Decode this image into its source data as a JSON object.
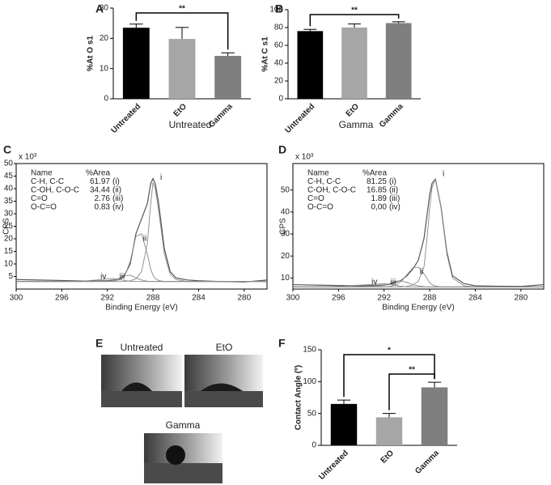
{
  "chart_data": [
    {
      "type": "bar",
      "panel_label": "A",
      "y_label": "%At O s1",
      "x_label": "Untreated",
      "categories": [
        "Untreated",
        "EtO",
        "Gamma"
      ],
      "values": [
        23.5,
        19.8,
        14.2
      ],
      "errors": [
        1.2,
        3.8,
        1.0
      ],
      "colors": [
        "#000000",
        "#a6a6a6",
        "#7f7f7f"
      ],
      "ylim": [
        0,
        30
      ],
      "yticks": [
        0,
        10,
        20,
        30
      ],
      "significance": [
        {
          "text": "**",
          "between": [
            "Untreated",
            "Gamma"
          ]
        }
      ]
    },
    {
      "type": "bar",
      "panel_label": "B",
      "y_label": "%At C s1",
      "x_label": "Gamma",
      "categories": [
        "Untreated",
        "EtO",
        "Gamma"
      ],
      "values": [
        76,
        80,
        85
      ],
      "errors": [
        2,
        4,
        1.5
      ],
      "colors": [
        "#000000",
        "#a6a6a6",
        "#7f7f7f"
      ],
      "ylim": [
        0,
        100
      ],
      "yticks": [
        0,
        20,
        40,
        60,
        80,
        100
      ],
      "significance": [
        {
          "text": "**",
          "between": [
            "Untreated",
            "Gamma"
          ]
        }
      ]
    },
    {
      "type": "line",
      "panel_label": "C",
      "y_label": "CPS",
      "x_label": "Binding Energy (eV)",
      "y_scale_label": "x 10³",
      "xlim": [
        300,
        278
      ],
      "xticks": [
        300,
        296,
        292,
        288,
        284,
        280
      ],
      "ylim": [
        0,
        50
      ],
      "yticks": [
        5,
        10,
        15,
        20,
        25,
        30,
        35,
        40,
        45,
        50
      ],
      "table": {
        "header": [
          "Name",
          "%Area"
        ],
        "rows": [
          [
            "C-H, C-C",
            "61.97",
            "(i)"
          ],
          [
            "C-OH, C-O-C",
            "34.44",
            "(ii)"
          ],
          [
            "C=O",
            "2.76",
            "(iii)"
          ],
          [
            "O-C=O",
            "0.83",
            "(iv)"
          ]
        ]
      },
      "x": [
        300,
        298,
        296,
        294,
        292,
        291.5,
        291,
        290.5,
        290,
        289.5,
        289,
        288.5,
        288.2,
        288,
        287.8,
        287.5,
        287,
        286.5,
        286,
        285,
        284,
        282,
        280,
        278
      ],
      "series": [
        {
          "color": "#555555",
          "values": [
            3.8,
            3.6,
            3.4,
            3.2,
            3.3,
            3.6,
            4.0,
            5.5,
            10,
            22,
            28,
            34,
            42,
            44,
            42,
            34,
            16,
            7,
            4.5,
            3.6,
            3.3,
            3.0,
            2.8,
            3.6
          ]
        },
        {
          "name": "i",
          "color": "#888888",
          "values": [
            3,
            3,
            3,
            3,
            3,
            3,
            3,
            3,
            3.3,
            4,
            7,
            18,
            34,
            42.5,
            40,
            31,
            14,
            6,
            3.8,
            3,
            3,
            3,
            3,
            3
          ]
        },
        {
          "name": "ii",
          "color": "#888888",
          "values": [
            3,
            3,
            3,
            3,
            3,
            3.2,
            3.6,
            5,
            11,
            21,
            22,
            14,
            8,
            5.5,
            4.2,
            3.4,
            3,
            3,
            3,
            3,
            3,
            3,
            3,
            3
          ]
        },
        {
          "name": "iii",
          "color": "#888888",
          "values": [
            3,
            3,
            3,
            3,
            3.1,
            3.4,
            4.2,
            5.3,
            5.5,
            4.5,
            3.6,
            3.1,
            3,
            3,
            3,
            3,
            3,
            3,
            3,
            3,
            3,
            3,
            3,
            3
          ]
        },
        {
          "name": "iv",
          "color": "#888888",
          "values": [
            3,
            3,
            3,
            3.2,
            4.0,
            4.2,
            3.9,
            3.4,
            3.1,
            3,
            3,
            3,
            3,
            3,
            3,
            3,
            3,
            3,
            3,
            3,
            3,
            3,
            3,
            3
          ]
        }
      ]
    },
    {
      "type": "line",
      "panel_label": "D",
      "y_label": "CPS",
      "x_label": "Binding Energy (eV)",
      "y_scale_label": "x 10³",
      "xlim": [
        300,
        278
      ],
      "xticks": [
        300,
        296,
        292,
        288,
        284,
        280
      ],
      "ylim": [
        5,
        62
      ],
      "yticks": [
        10,
        20,
        30,
        40,
        50
      ],
      "table": {
        "header": [
          "Name",
          "%Area"
        ],
        "rows": [
          [
            "C-H, C-C",
            "81.25",
            "(i)"
          ],
          [
            "C-OH, C-O-C",
            "16.85",
            "(ii)"
          ],
          [
            "C=O",
            "1.89",
            "(iii)"
          ],
          [
            "O-C=O",
            "0,00",
            "(iv)"
          ]
        ]
      },
      "x": [
        300,
        298,
        296,
        294,
        292,
        291.5,
        291,
        290.5,
        290,
        289.5,
        289,
        288.5,
        288.2,
        288,
        287.8,
        287.5,
        287,
        286.5,
        286,
        285,
        284,
        282,
        280,
        278
      ],
      "series": [
        {
          "color": "#555555",
          "values": [
            7,
            6.8,
            6.6,
            6.5,
            6.8,
            7.2,
            8,
            9,
            11,
            14,
            18,
            28,
            40,
            48,
            53,
            55,
            42,
            22,
            11,
            7.5,
            6.5,
            6.3,
            6.2,
            7
          ]
        },
        {
          "name": "i",
          "color": "#888888",
          "values": [
            6,
            6,
            6,
            6,
            6,
            6,
            6,
            6,
            6.2,
            6.8,
            8.5,
            15,
            30,
            42,
            51,
            55,
            42,
            21,
            10,
            6.5,
            6,
            6,
            6,
            6
          ]
        },
        {
          "name": "ii",
          "color": "#888888",
          "values": [
            6,
            6,
            6,
            6,
            6,
            6.2,
            6.8,
            8.5,
            11.5,
            14.5,
            15,
            12,
            9.5,
            8,
            7,
            6.4,
            6,
            6,
            6,
            6,
            6,
            6,
            6,
            6
          ]
        },
        {
          "name": "iii",
          "color": "#888888",
          "values": [
            6,
            6,
            6,
            6.1,
            6.6,
            7.5,
            8.5,
            8.8,
            8,
            7,
            6.4,
            6.1,
            6,
            6,
            6,
            6,
            6,
            6,
            6,
            6,
            6,
            6,
            6,
            6
          ]
        },
        {
          "name": "iv",
          "color": "#888888",
          "values": [
            6,
            6,
            6.2,
            6.8,
            7.4,
            7.2,
            6.7,
            6.3,
            6,
            6,
            6,
            6,
            6,
            6,
            6,
            6,
            6,
            6,
            6,
            6,
            6,
            6,
            6,
            6
          ]
        }
      ]
    },
    {
      "type": "bar",
      "panel_label": "F",
      "y_label": "Contact Angle (º)",
      "categories": [
        "Untreated",
        "EtO",
        "Gamma"
      ],
      "values": [
        65,
        44,
        91
      ],
      "errors": [
        6,
        6,
        8
      ],
      "colors": [
        "#000000",
        "#a6a6a6",
        "#7f7f7f"
      ],
      "ylim": [
        0,
        150
      ],
      "yticks": [
        0,
        50,
        100,
        150
      ],
      "significance": [
        {
          "text": "*",
          "between": [
            "Untreated",
            "Gamma"
          ]
        },
        {
          "text": "**",
          "between": [
            "EtO",
            "Gamma"
          ]
        }
      ]
    }
  ],
  "images": {
    "panel_label": "E",
    "items": [
      {
        "label": "Untreated"
      },
      {
        "label": "EtO"
      },
      {
        "label": "Gamma"
      }
    ]
  }
}
